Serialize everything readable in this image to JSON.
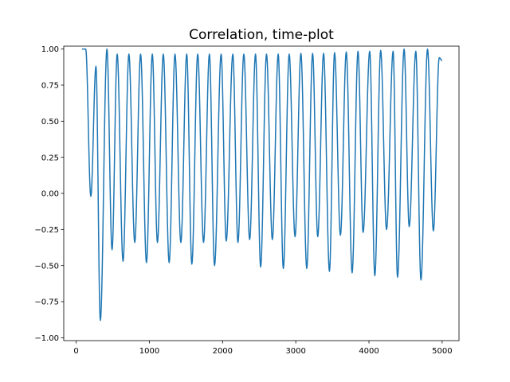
{
  "chart_data": {
    "type": "line",
    "title": "Correlation, time-plot",
    "xlabel": "",
    "ylabel": "",
    "xlim": [
      -170,
      5230
    ],
    "ylim": [
      -1.02,
      1.02
    ],
    "grid": false,
    "legend": "none",
    "x_ticks": [
      0,
      1000,
      2000,
      3000,
      4000,
      5000
    ],
    "x_tick_labels": [
      "0",
      "1000",
      "2000",
      "3000",
      "4000",
      "5000"
    ],
    "y_ticks": [
      1.0,
      0.75,
      0.5,
      0.25,
      0.0,
      -0.25,
      -0.5,
      -0.75,
      -1.0
    ],
    "y_tick_labels": [
      "1.00",
      "0.75",
      "0.50",
      "0.25",
      "0.00",
      "−0.25",
      "−0.50",
      "−0.75",
      "−1.00"
    ],
    "series": [
      {
        "color": "#1f77b4",
        "x_start": 80,
        "x_end": 5000,
        "plateau_end": 130,
        "peaks": [
          [
            130,
            1.0
          ],
          [
            270,
            0.88
          ],
          [
            420,
            1.0
          ],
          [
            560,
            0.965
          ],
          [
            720,
            0.965
          ],
          [
            880,
            0.965
          ],
          [
            1040,
            0.965
          ],
          [
            1190,
            0.965
          ],
          [
            1350,
            0.965
          ],
          [
            1510,
            0.965
          ],
          [
            1660,
            0.965
          ],
          [
            1820,
            0.965
          ],
          [
            1980,
            0.965
          ],
          [
            2140,
            0.965
          ],
          [
            2290,
            0.965
          ],
          [
            2450,
            0.965
          ],
          [
            2600,
            0.965
          ],
          [
            2760,
            0.965
          ],
          [
            2910,
            0.965
          ],
          [
            3070,
            0.97
          ],
          [
            3230,
            0.97
          ],
          [
            3380,
            0.97
          ],
          [
            3530,
            0.975
          ],
          [
            3690,
            0.98
          ],
          [
            3850,
            0.985
          ],
          [
            4010,
            0.985
          ],
          [
            4160,
            0.99
          ],
          [
            4330,
            0.985
          ],
          [
            4480,
            1.0
          ],
          [
            4640,
            0.985
          ],
          [
            4800,
            1.0
          ],
          [
            4960,
            0.94
          ]
        ],
        "troughs": [
          [
            200,
            -0.02
          ],
          [
            330,
            -0.88
          ],
          [
            490,
            -0.39
          ],
          [
            640,
            -0.47
          ],
          [
            800,
            -0.34
          ],
          [
            960,
            -0.48
          ],
          [
            1110,
            -0.34
          ],
          [
            1270,
            -0.48
          ],
          [
            1430,
            -0.34
          ],
          [
            1580,
            -0.49
          ],
          [
            1740,
            -0.34
          ],
          [
            1890,
            -0.5
          ],
          [
            2050,
            -0.33
          ],
          [
            2210,
            -0.34
          ],
          [
            2370,
            -0.32
          ],
          [
            2520,
            -0.51
          ],
          [
            2680,
            -0.32
          ],
          [
            2830,
            -0.52
          ],
          [
            2990,
            -0.3
          ],
          [
            3150,
            -0.52
          ],
          [
            3300,
            -0.3
          ],
          [
            3460,
            -0.54
          ],
          [
            3610,
            -0.29
          ],
          [
            3770,
            -0.55
          ],
          [
            3920,
            -0.27
          ],
          [
            4080,
            -0.57
          ],
          [
            4240,
            -0.25
          ],
          [
            4390,
            -0.58
          ],
          [
            4550,
            -0.23
          ],
          [
            4710,
            -0.6
          ],
          [
            4880,
            -0.26
          ]
        ],
        "end_value": 0.92
      }
    ]
  }
}
